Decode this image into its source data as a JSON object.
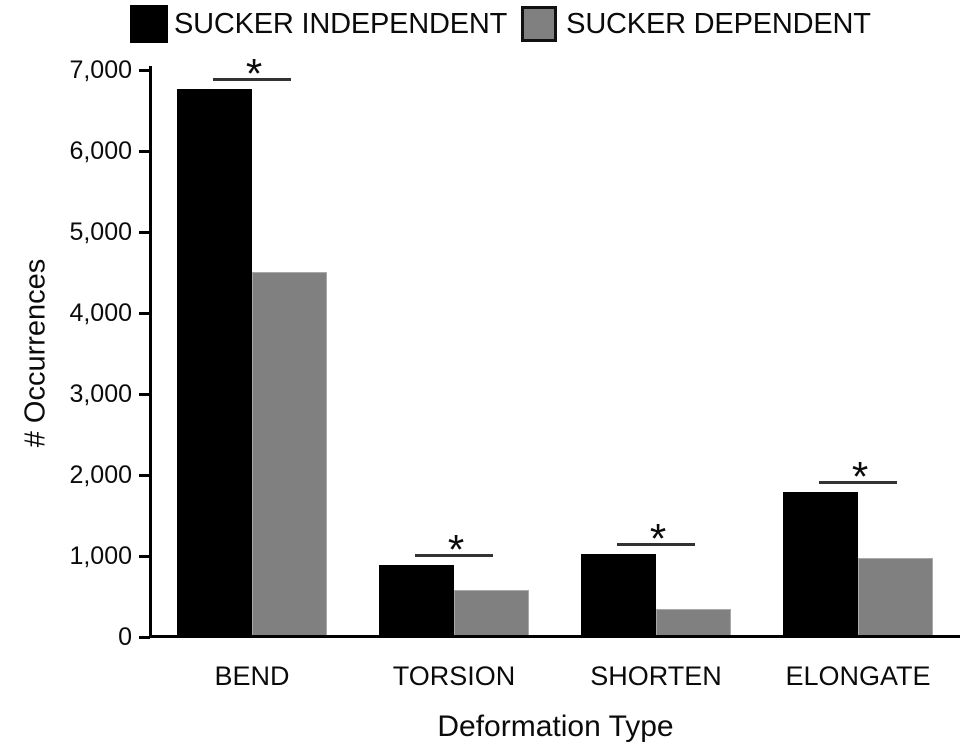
{
  "chart_data": {
    "type": "bar",
    "title": "",
    "xlabel": "Deformation Type",
    "ylabel": "# Occurrences",
    "categories": [
      "BEND",
      "TORSION",
      "SHORTEN",
      "ELONGATE"
    ],
    "series": [
      {
        "name": "SUCKER INDEPENDENT",
        "color": "#000000",
        "values": [
          6770,
          890,
          1025,
          1790
        ]
      },
      {
        "name": "SUCKER DEPENDENT",
        "color": "#808080",
        "values": [
          4500,
          580,
          345,
          975
        ]
      }
    ],
    "ylim": [
      0,
      7000
    ],
    "ytick_step": 1000,
    "ytick_labels": [
      "0",
      "1,000",
      "2,000",
      "3,000",
      "4,000",
      "5,000",
      "6,000",
      "7,000"
    ],
    "grid": false,
    "legend_position": "top",
    "significance_markers": [
      {
        "category": "BEND",
        "symbol": "*"
      },
      {
        "category": "TORSION",
        "symbol": "*"
      },
      {
        "category": "SHORTEN",
        "symbol": "*"
      },
      {
        "category": "ELONGATE",
        "symbol": "*"
      }
    ]
  }
}
